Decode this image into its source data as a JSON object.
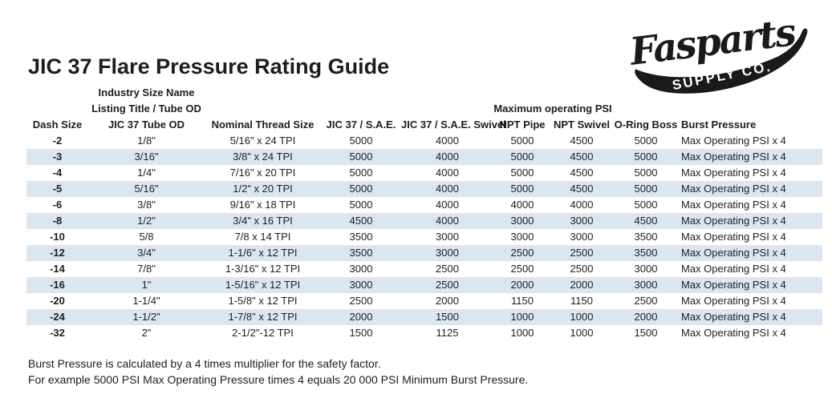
{
  "page": {
    "title": "JIC 37 Flare Pressure Rating Guide"
  },
  "logo": {
    "script_text": "Fasparts",
    "swoosh_text": "SUPPLY CO.",
    "color": "#1a1a1a"
  },
  "colors": {
    "row_shade": "#dce6f1",
    "text": "#1d1d1d",
    "background": "#ffffff"
  },
  "table": {
    "group_headers": {
      "industry_line1": "Industry Size Name",
      "industry_line2": "Listing Title / Tube OD",
      "max_psi": "Maximum operating PSI"
    },
    "columns": [
      "Dash Size",
      "JIC 37 Tube OD",
      "Nominal Thread Size",
      "JIC 37 / S.A.E.",
      "JIC 37 / S.A.E. Swivel",
      "NPT Pipe",
      "NPT Swivel",
      "O-Ring Boss",
      "Burst Pressure"
    ],
    "rows": [
      [
        "-2",
        "1/8\"",
        "5/16\" x 24 TPI",
        "5000",
        "4000",
        "5000",
        "4500",
        "5000",
        "Max Operating PSI x 4"
      ],
      [
        "-3",
        "3/16\"",
        "3/8\" x 24 TPI",
        "5000",
        "4000",
        "5000",
        "4500",
        "5000",
        "Max Operating PSI x 4"
      ],
      [
        "-4",
        "1/4\"",
        "7/16\" x 20 TPI",
        "5000",
        "4000",
        "5000",
        "4500",
        "5000",
        "Max Operating PSI x 4"
      ],
      [
        "-5",
        "5/16\"",
        "1/2\" x 20 TPI",
        "5000",
        "4000",
        "5000",
        "4500",
        "5000",
        "Max Operating PSI x 4"
      ],
      [
        "-6",
        "3/8\"",
        "9/16\" x 18 TPI",
        "5000",
        "4000",
        "4000",
        "4000",
        "5000",
        "Max Operating PSI x 4"
      ],
      [
        "-8",
        "1/2\"",
        "3/4\" x 16 TPI",
        "4500",
        "4000",
        "3000",
        "3000",
        "4500",
        "Max Operating PSI x 4"
      ],
      [
        "-10",
        "5/8",
        "7/8 x 14 TPI",
        "3500",
        "3000",
        "3000",
        "3000",
        "3500",
        "Max Operating PSI x 4"
      ],
      [
        "-12",
        "3/4\"",
        "1-1/6\" x 12 TPI",
        "3500",
        "3000",
        "2500",
        "2500",
        "3500",
        "Max Operating PSI x 4"
      ],
      [
        "-14",
        "7/8\"",
        "1-3/16\" x 12 TPI",
        "3000",
        "2500",
        "2500",
        "2500",
        "3000",
        "Max Operating PSI x 4"
      ],
      [
        "-16",
        "1\"",
        "1-5/16\" x 12 TPI",
        "3000",
        "2500",
        "2000",
        "2000",
        "3000",
        "Max Operating PSI x 4"
      ],
      [
        "-20",
        "1-1/4\"",
        "1-5/8\" x 12 TPI",
        "2500",
        "2000",
        "1150",
        "1150",
        "2500",
        "Max Operating PSI x 4"
      ],
      [
        "-24",
        "1-1/2\"",
        "1-7/8\" x 12 TPI",
        "2000",
        "1500",
        "1000",
        "1000",
        "2000",
        "Max Operating PSI x 4"
      ],
      [
        "-32",
        "2\"",
        "2-1/2\"-12 TPI",
        "1500",
        "1125",
        "1000",
        "1000",
        "1500",
        "Max Operating PSI x 4"
      ]
    ]
  },
  "footer": {
    "line1": "Burst Pressure is calculated by a 4 times multiplier for the safety factor.",
    "line2": "For example 5000 PSI Max Operating Pressure times 4 equals 20 000 PSI Minimum Burst Pressure."
  }
}
